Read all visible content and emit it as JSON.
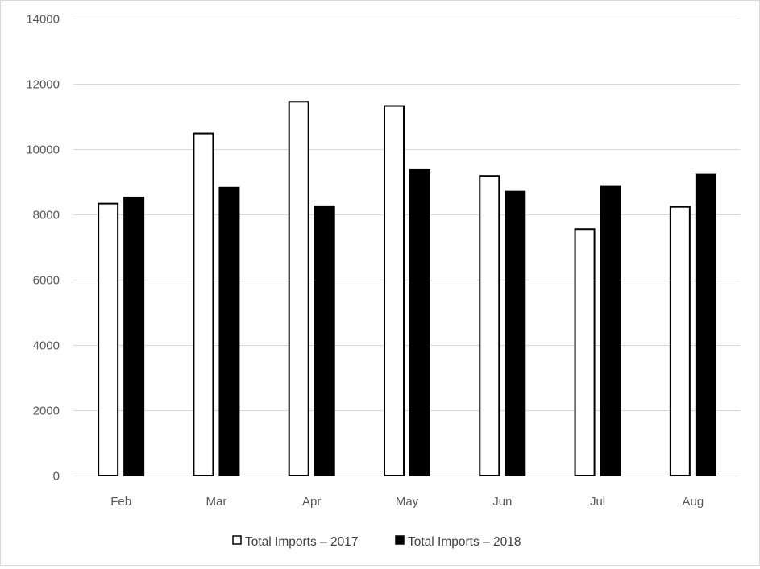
{
  "chart_data": {
    "type": "bar",
    "categories": [
      "Feb",
      "Mar",
      "Apr",
      "May",
      "Jun",
      "Jul",
      "Aug"
    ],
    "series": [
      {
        "name": "Total Imports – 2017",
        "values": [
          8330,
          10480,
          11450,
          11320,
          9180,
          7550,
          8230
        ],
        "fill": "#ffffff",
        "stroke": "#000000"
      },
      {
        "name": "Total Imports – 2018",
        "values": [
          8520,
          8820,
          8250,
          9360,
          8700,
          8850,
          9220
        ],
        "fill": "#000000",
        "stroke": "#000000"
      }
    ],
    "ylim": [
      0,
      14000
    ],
    "yticks": [
      0,
      2000,
      4000,
      6000,
      8000,
      10000,
      12000,
      14000
    ],
    "grid": true,
    "legend_position": "bottom",
    "gridline_color": "#d9d9d9"
  }
}
